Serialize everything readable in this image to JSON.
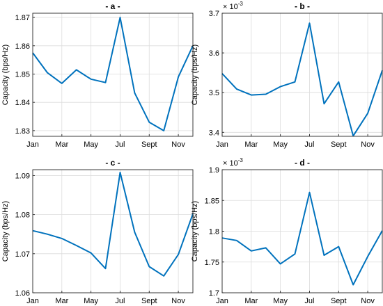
{
  "chart_data": [
    {
      "type": "line",
      "title": "- a -",
      "ylabel": "Capacity (bps/Hz)",
      "xlabel": "",
      "exponent": "",
      "x_tick_labels": [
        "Jan",
        "Mar",
        "May",
        "Jul",
        "Sept",
        "Nov"
      ],
      "y_ticks": [
        "1.83",
        "1.84",
        "1.85",
        "1.86",
        "1.87"
      ],
      "ylim": [
        1.828,
        1.8715
      ],
      "x": [
        1,
        2,
        3,
        4,
        5,
        6,
        7,
        8,
        9,
        10,
        11,
        12
      ],
      "values": [
        1.8575,
        1.8505,
        1.8467,
        1.8515,
        1.8482,
        1.847,
        1.87,
        1.8433,
        1.833,
        1.83,
        1.849,
        1.86
      ],
      "grid": true
    },
    {
      "type": "line",
      "title": "- b -",
      "ylabel": "Capacity (bps/Hz)",
      "xlabel": "",
      "exponent": "-3",
      "x_tick_labels": [
        "Jan",
        "Mar",
        "May",
        "Jul",
        "Sept",
        "Nov"
      ],
      "y_ticks": [
        "3.4",
        "3.5",
        "3.6",
        "3.7"
      ],
      "ylim": [
        3.39,
        3.7
      ],
      "x": [
        1,
        2,
        3,
        4,
        5,
        6,
        7,
        8,
        9,
        10,
        11,
        12
      ],
      "values": [
        3.548,
        3.509,
        3.494,
        3.496,
        3.515,
        3.527,
        3.675,
        3.472,
        3.527,
        3.391,
        3.448,
        3.556
      ],
      "grid": true
    },
    {
      "type": "line",
      "title": "- c -",
      "ylabel": "Capacity (bps/Hz)",
      "xlabel": "",
      "exponent": "",
      "x_tick_labels": [
        "Jan",
        "Mar",
        "May",
        "Jul",
        "Sept",
        "Nov"
      ],
      "y_ticks": [
        "1.06",
        "1.07",
        "1.08",
        "1.09"
      ],
      "ylim": [
        1.06,
        1.0915
      ],
      "x": [
        1,
        2,
        3,
        4,
        5,
        6,
        7,
        8,
        9,
        10,
        11,
        12
      ],
      "values": [
        1.0759,
        1.075,
        1.0739,
        1.0721,
        1.0702,
        1.0662,
        1.0908,
        1.0755,
        1.0667,
        1.0643,
        1.0698,
        1.0802
      ],
      "grid": true
    },
    {
      "type": "line",
      "title": "- d -",
      "ylabel": "Capacity (bps/Hz)",
      "xlabel": "",
      "exponent": "-3",
      "x_tick_labels": [
        "Jan",
        "Mar",
        "May",
        "Jul",
        "Sept",
        "Nov"
      ],
      "y_ticks": [
        "1.7",
        "1.75",
        "1.8",
        "1.85",
        "1.9"
      ],
      "ylim": [
        1.7,
        1.9
      ],
      "x": [
        1,
        2,
        3,
        4,
        5,
        6,
        7,
        8,
        9,
        10,
        11,
        12
      ],
      "values": [
        1.789,
        1.785,
        1.768,
        1.773,
        1.747,
        1.763,
        1.863,
        1.761,
        1.775,
        1.713,
        1.759,
        1.801
      ],
      "grid": true
    }
  ],
  "colors": {
    "line": "#0072bd",
    "grid": "#dcdcdc",
    "axis": "#262626"
  }
}
